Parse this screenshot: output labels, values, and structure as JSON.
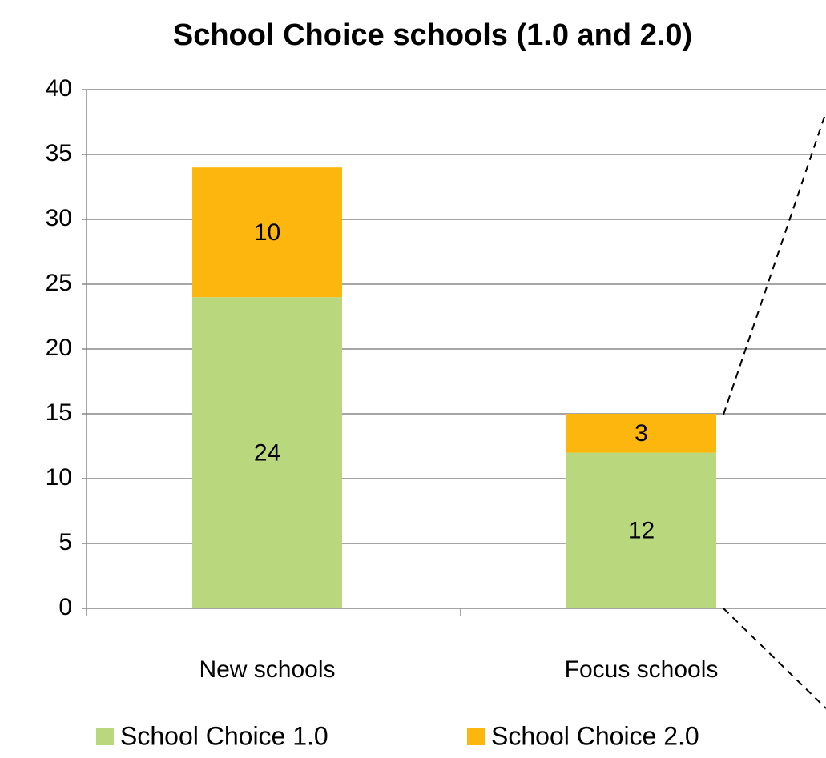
{
  "chart_data": {
    "type": "bar",
    "stacked": true,
    "title": "School Choice schools (1.0 and 2.0)",
    "categories": [
      "New schools",
      "Focus schools"
    ],
    "series": [
      {
        "name": "School Choice 1.0",
        "color": "#b9d77c",
        "values": [
          24,
          12
        ]
      },
      {
        "name": "School Choice 2.0",
        "color": "#fdb60d",
        "values": [
          10,
          3
        ]
      }
    ],
    "ylim": [
      0,
      40
    ],
    "yticks": [
      0,
      5,
      10,
      15,
      20,
      25,
      30,
      35,
      40
    ],
    "grid": true,
    "legend": "bottom"
  }
}
